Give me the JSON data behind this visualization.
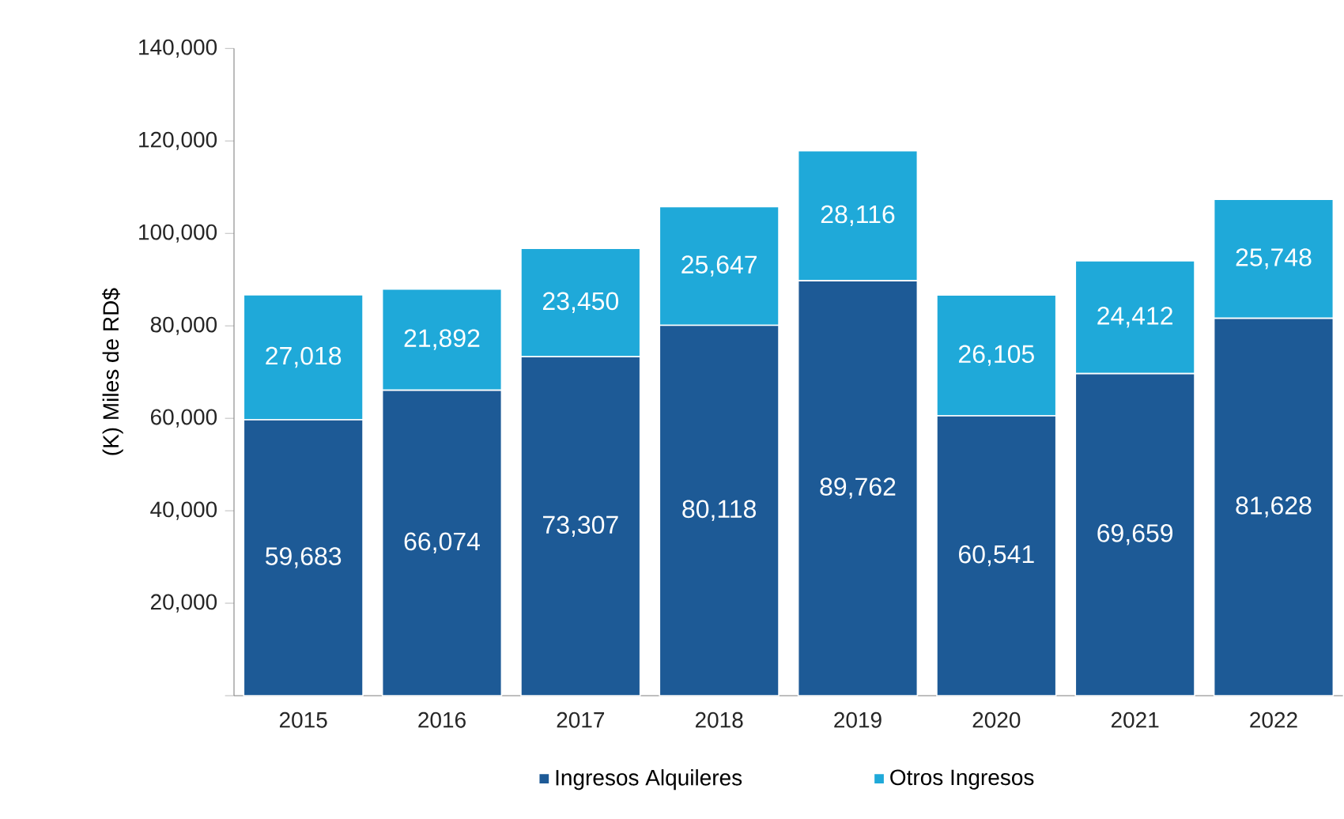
{
  "chart_data": {
    "type": "bar",
    "stacked": true,
    "ylabel": "(K) Miles de RD$",
    "categories": [
      "2015",
      "2016",
      "2017",
      "2018",
      "2019",
      "2020",
      "2021",
      "2022"
    ],
    "series": [
      {
        "name": "Ingresos Alquileres",
        "color": "#1d5a96",
        "values": [
          59683,
          66074,
          73307,
          80118,
          89762,
          60541,
          69659,
          81628
        ],
        "value_labels": [
          "59,683",
          "66,074",
          "73,307",
          "80,118",
          "89,762",
          "60,541",
          "69,659",
          "81,628"
        ]
      },
      {
        "name": "Otros Ingresos",
        "color": "#1fa9d9",
        "values": [
          27018,
          21892,
          23450,
          25647,
          28116,
          26105,
          24412,
          25748
        ],
        "value_labels": [
          "27,018",
          "21,892",
          "23,450",
          "25,647",
          "28,116",
          "26,105",
          "24,412",
          "25,748"
        ]
      }
    ],
    "ylim": [
      0,
      140000
    ],
    "yticks": [
      {
        "value": 0,
        "label": null
      },
      {
        "value": 20000,
        "label": "20,000"
      },
      {
        "value": 40000,
        "label": "40,000"
      },
      {
        "value": 60000,
        "label": "60,000"
      },
      {
        "value": 80000,
        "label": "80,000"
      },
      {
        "value": 100000,
        "label": "100,000"
      },
      {
        "value": 120000,
        "label": "120,000"
      },
      {
        "value": 140000,
        "label": "140,000"
      }
    ],
    "grid": false,
    "legend": "bottom"
  }
}
